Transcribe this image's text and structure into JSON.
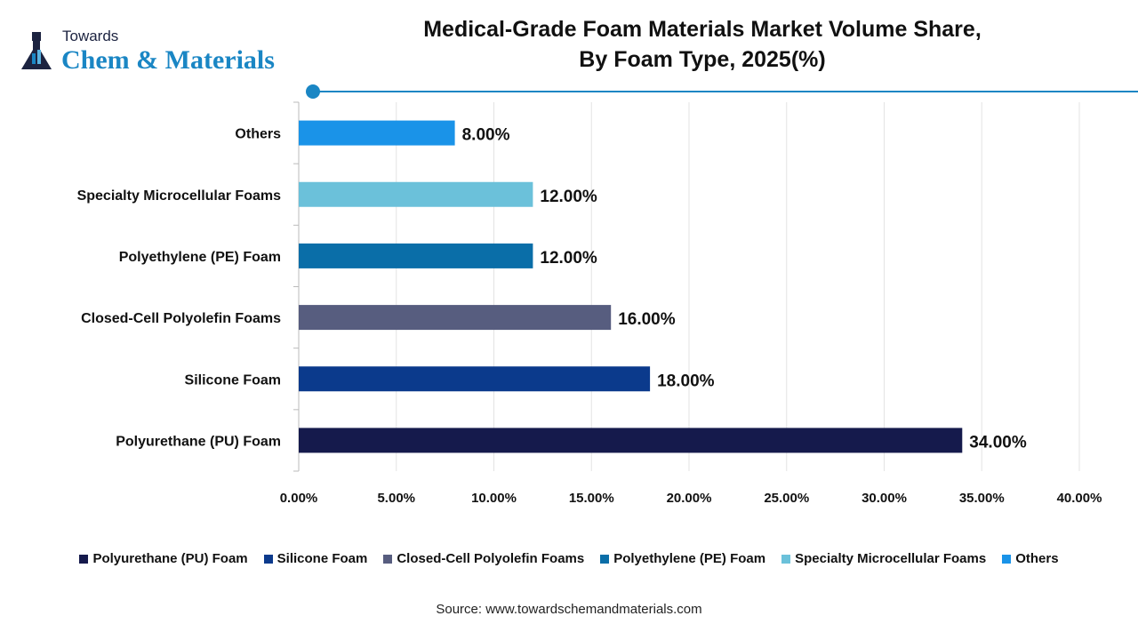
{
  "logo": {
    "top": "Towards",
    "main": "Chem & Materials"
  },
  "title_line1": "Medical-Grade Foam Materials Market Volume Share,",
  "title_line2": "By Foam Type, 2025(%)",
  "accent": "#1a86c4",
  "chart_data": {
    "type": "bar",
    "orientation": "horizontal",
    "title": "Medical-Grade Foam Materials Market Volume Share, By Foam Type, 2025(%)",
    "categories": [
      "Polyurethane (PU) Foam",
      "Silicone Foam",
      "Closed-Cell Polyolefin Foams",
      "Polyethylene (PE) Foam",
      "Specialty Microcellular Foams",
      "Others"
    ],
    "values": [
      34,
      18,
      16,
      12,
      12,
      8
    ],
    "data_labels": [
      "34.00%",
      "18.00%",
      "16.00%",
      "12.00%",
      "12.00%",
      "8.00%"
    ],
    "colors": [
      "#151a4c",
      "#0b3a8c",
      "#575d7f",
      "#0a6ea8",
      "#6bc1da",
      "#1a93e8"
    ],
    "xlim": [
      0,
      40
    ],
    "xticks": [
      "0.00%",
      "5.00%",
      "10.00%",
      "15.00%",
      "20.00%",
      "25.00%",
      "30.00%",
      "35.00%",
      "40.00%"
    ],
    "grid": true,
    "legend_position": "bottom"
  },
  "source": "Source: www.towardschemandmaterials.com"
}
